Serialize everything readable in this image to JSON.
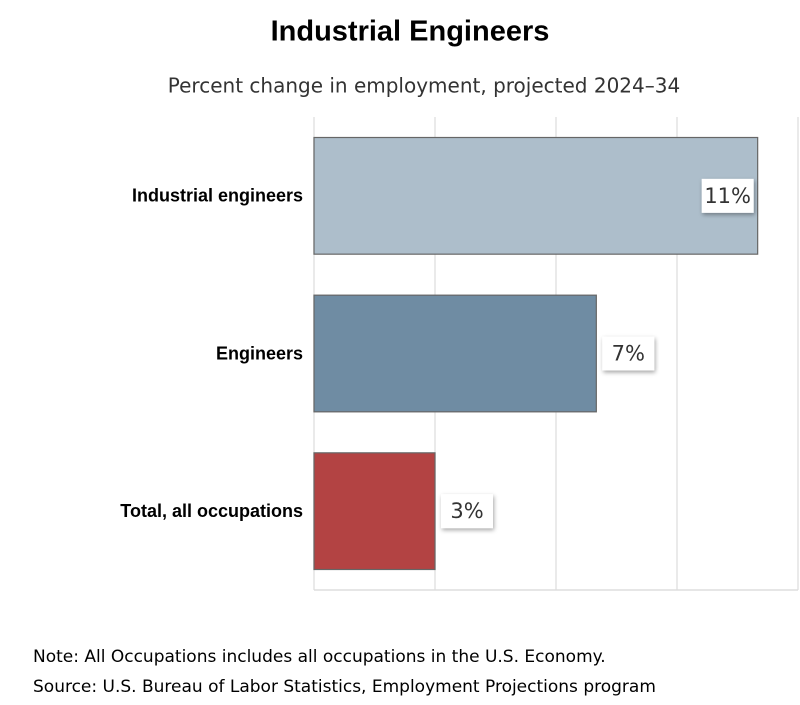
{
  "chart_data": {
    "type": "barh",
    "title": "Industrial Engineers",
    "subtitle": "Percent change in employment, projected 2024–34",
    "categories": [
      "Industrial engineers",
      "Engineers",
      "Total, all occupations"
    ],
    "values": [
      11,
      7,
      3
    ],
    "value_labels": [
      "11%",
      "7%",
      "3%"
    ],
    "colors": [
      "#adbecb",
      "#6f8ca3",
      "#b34343"
    ],
    "xlim": [
      0,
      12
    ],
    "xticks": [
      0,
      3,
      6,
      9,
      12
    ],
    "grid": true
  },
  "notes": [
    "Note: All Occupations includes all occupations in the U.S. Economy.",
    "Source: U.S. Bureau of Labor Statistics, Employment Projections program"
  ]
}
